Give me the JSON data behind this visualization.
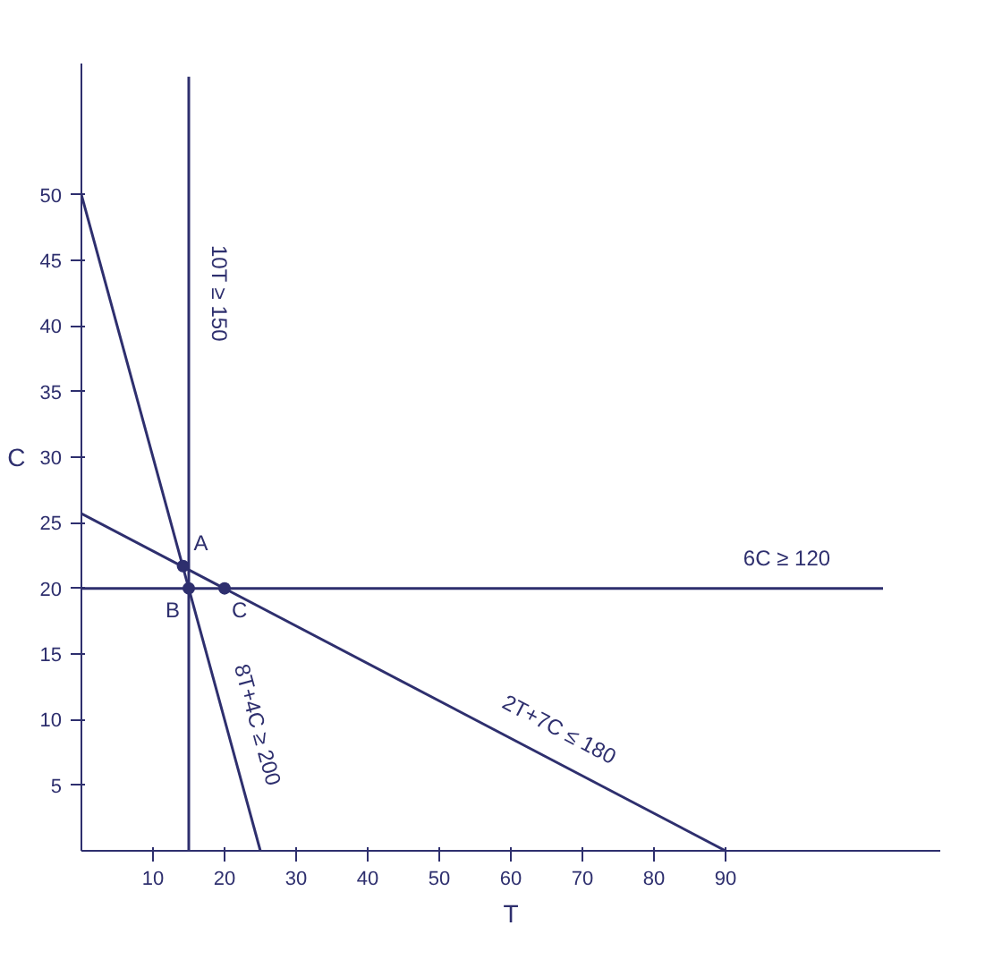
{
  "chart_data": {
    "type": "line",
    "xlabel": "T",
    "ylabel": "C",
    "xlim": [
      0,
      120
    ],
    "ylim": [
      0,
      60
    ],
    "xticks": [
      10,
      20,
      30,
      40,
      50,
      60,
      70,
      80,
      90
    ],
    "yticks": [
      5,
      10,
      15,
      20,
      25,
      30,
      35,
      40,
      45,
      50
    ],
    "grid": false,
    "series": [
      {
        "name": "10T ≥ 150",
        "color": "#2e2f6e",
        "x": [
          15,
          15
        ],
        "values": [
          0,
          59
        ]
      },
      {
        "name": "6C ≥ 120",
        "color": "#2e2f6e",
        "x": [
          0,
          112
        ],
        "values": [
          20,
          20
        ]
      },
      {
        "name": "8T+4C ≥ 200",
        "color": "#2e2f6e",
        "x": [
          0,
          25
        ],
        "values": [
          50,
          0
        ]
      },
      {
        "name": "2T+7C ≤ 180",
        "color": "#2e2f6e",
        "x": [
          0,
          90
        ],
        "values": [
          25.7,
          0
        ]
      },
      {
        "type": "scatter",
        "marker": "circle",
        "color": "#2e2f6e",
        "x": [
          14.2,
          15,
          20
        ],
        "values": [
          21.7,
          20,
          20
        ]
      }
    ],
    "annotations": [
      {
        "text": "A",
        "x": 14.2,
        "y": 21.7
      },
      {
        "text": "B",
        "x": 15,
        "y": 20
      },
      {
        "text": "C",
        "x": 20,
        "y": 20
      }
    ]
  }
}
